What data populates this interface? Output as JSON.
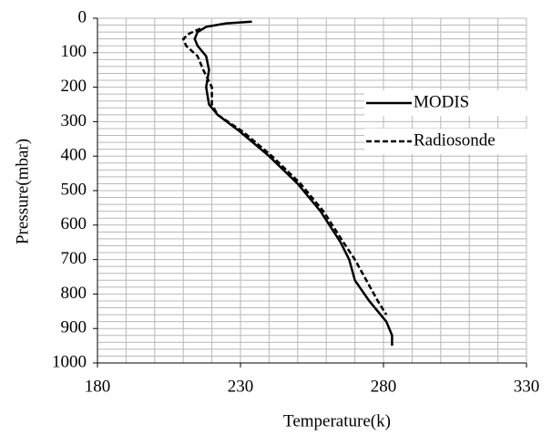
{
  "chart_data": {
    "type": "line",
    "xlabel": "Temperature(k)",
    "ylabel": "Pressure(mbar)",
    "xlim": [
      180,
      330
    ],
    "xticks": [
      180,
      230,
      280,
      330
    ],
    "ylim": [
      0,
      1000
    ],
    "y_inverted": true,
    "yticks": [
      0,
      100,
      200,
      300,
      400,
      500,
      600,
      700,
      800,
      900,
      1000
    ],
    "grid": true,
    "xgrid": [
      190,
      200,
      210,
      220,
      230,
      240,
      250,
      260,
      270,
      280,
      290,
      300,
      310,
      320,
      330
    ],
    "ygrid": [
      0,
      20,
      40,
      60,
      80,
      100,
      120,
      140,
      160,
      180,
      200,
      220,
      240,
      260,
      280,
      300,
      320,
      340,
      360,
      380,
      400,
      420,
      440,
      460,
      480,
      500,
      520,
      540,
      560,
      580,
      600,
      620,
      640,
      660,
      680,
      700,
      720,
      740,
      760,
      780,
      800,
      820,
      840,
      860,
      880,
      900,
      920,
      940,
      960,
      980
    ],
    "legend": "right",
    "series": [
      {
        "name": "MODIS",
        "color": "#000000",
        "dash": false,
        "x": [
          234,
          225,
          218,
          215,
          214,
          215,
          218,
          219,
          218,
          219,
          222,
          230,
          240,
          250,
          258,
          265,
          268,
          270,
          275,
          281,
          283,
          283
        ],
        "values": [
          10,
          15,
          25,
          40,
          60,
          80,
          110,
          150,
          200,
          250,
          280,
          330,
          400,
          480,
          560,
          650,
          700,
          760,
          820,
          880,
          920,
          950
        ]
      },
      {
        "name": "Radiosonde",
        "color": "#000000",
        "dash": true,
        "x": [
          216,
          212,
          210,
          211,
          215,
          217,
          220,
          220,
          222,
          231,
          241,
          251,
          259,
          266,
          270,
          274,
          278,
          281
        ],
        "values": [
          30,
          45,
          60,
          80,
          110,
          150,
          200,
          250,
          280,
          330,
          400,
          480,
          560,
          650,
          700,
          760,
          820,
          860
        ]
      }
    ]
  }
}
